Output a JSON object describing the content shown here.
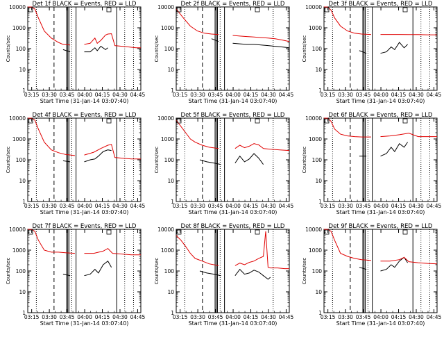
{
  "x_tick_labels": [
    "03:15",
    "03:30",
    "03:45",
    "04:00",
    "04:15",
    "04:30",
    "04:45"
  ],
  "y_tick_labels": [
    "1",
    "10",
    "100",
    "1000",
    "10000"
  ],
  "ylabel": "Counts/sec",
  "xlabel": "Start Time (31-Jan-14 03:07:40)",
  "colors": {
    "events": "#000000",
    "lld": "#e00000"
  },
  "chart_data": [
    {
      "type": "line",
      "title": "Det 1f BLACK = Events, RED = LLD",
      "xlabel": "Start Time (31-Jan-14 03:07:40)",
      "ylabel": "Counts/sec",
      "y_scale": "log",
      "x_unit": "minutes since 03:07:40",
      "xlim": [
        4,
        100
      ],
      "ylim": [
        1,
        10000
      ],
      "series": [
        {
          "name": "BLACK = Events",
          "color": "#000000",
          "x": [
            34,
            40,
            46,
            52,
            57,
            61,
            63,
            66,
            70,
            72
          ],
          "y": [
            90,
            70,
            80,
            70,
            70,
            110,
            80,
            130,
            90,
            110
          ]
        },
        {
          "name": "RED = LLD",
          "color": "#e00000",
          "x": [
            4,
            7,
            10,
            13,
            18,
            24,
            30,
            34,
            40,
            46,
            52,
            57,
            61,
            63,
            66,
            70,
            72,
            75,
            78,
            84,
            90,
            96,
            100
          ],
          "y": [
            10000,
            10000,
            8000,
            3000,
            700,
            320,
            200,
            160,
            150,
            140,
            160,
            180,
            320,
            180,
            250,
            450,
            500,
            520,
            140,
            130,
            120,
            110,
            110
          ]
        }
      ],
      "vlines_dotted_min": [
        11.3,
        41.3,
        86.3,
        93.8
      ],
      "vlines_dashed_min": [
        26.3
      ],
      "vlines_solid_min": [
        37.0,
        38.0,
        39.0,
        45.0,
        79.5
      ],
      "gap_min": [
        45,
        50
      ]
    },
    {
      "type": "line",
      "title": "Det 2f BLACK = Events, RED = LLD",
      "xlabel": "Start Time (31-Jan-14 03:07:40)",
      "ylabel": "Counts/sec",
      "y_scale": "log",
      "x_unit": "minutes since 03:07:40",
      "xlim": [
        4,
        100
      ],
      "ylim": [
        1,
        10000
      ],
      "series": [
        {
          "name": "BLACK = Events",
          "color": "#000000",
          "x": [
            34,
            40,
            46,
            52,
            58,
            64,
            70,
            76,
            82,
            88,
            94,
            100
          ],
          "y": [
            300,
            220,
            190,
            180,
            170,
            160,
            160,
            150,
            140,
            130,
            120,
            110
          ]
        },
        {
          "name": "RED = LLD",
          "color": "#e00000",
          "x": [
            4,
            10,
            16,
            22,
            28,
            34,
            40,
            46,
            52,
            58,
            64,
            70,
            76,
            82,
            88,
            94,
            100
          ],
          "y": [
            8000,
            3000,
            1200,
            700,
            550,
            500,
            470,
            450,
            430,
            400,
            380,
            360,
            340,
            320,
            300,
            260,
            220
          ]
        }
      ],
      "vlines_dotted_min": [
        11.3,
        41.3,
        86.3
      ],
      "vlines_dashed_min": [
        26.3
      ],
      "vlines_solid_min": [
        37.0,
        38.0,
        39.0,
        45.0
      ],
      "gap_min": [
        45,
        50
      ]
    },
    {
      "type": "line",
      "title": "Det 3f BLACK = Events, RED = LLD",
      "xlabel": "Start Time (31-Jan-14 03:07:40)",
      "ylabel": "Counts/sec",
      "y_scale": "log",
      "x_unit": "minutes since 03:07:40",
      "xlim": [
        4,
        100
      ],
      "ylim": [
        1,
        10000
      ],
      "series": [
        {
          "name": "BLACK = Events",
          "color": "#000000",
          "x": [
            34,
            40,
            46,
            52,
            57,
            61,
            64,
            68,
            72,
            75
          ],
          "y": [
            80,
            60,
            60,
            60,
            70,
            120,
            90,
            200,
            110,
            160
          ]
        },
        {
          "name": "RED = LLD",
          "color": "#e00000",
          "x": [
            4,
            7,
            10,
            13,
            18,
            24,
            30,
            36,
            44,
            52,
            60,
            68,
            76,
            84,
            92,
            100
          ],
          "y": [
            10000,
            10000,
            7000,
            3000,
            1200,
            700,
            550,
            500,
            480,
            480,
            480,
            480,
            470,
            470,
            460,
            460
          ]
        }
      ],
      "vlines_dotted_min": [
        11.3,
        41.3,
        86.3,
        93.8
      ],
      "vlines_dashed_min": [
        26.3
      ],
      "vlines_solid_min": [
        37.0,
        38.0,
        39.0,
        45.0,
        79.5
      ],
      "gap_min": [
        45,
        50
      ]
    },
    {
      "type": "line",
      "title": "Det 4f BLACK = Events, RED = LLD",
      "xlabel": "Start Time (31-Jan-14 03:07:40)",
      "ylabel": "Counts/sec",
      "y_scale": "log",
      "x_unit": "minutes since 03:07:40",
      "xlim": [
        4,
        100
      ],
      "ylim": [
        1,
        10000
      ],
      "series": [
        {
          "name": "BLACK = Events",
          "color": "#000000",
          "x": [
            34,
            40,
            46,
            52,
            57,
            61,
            64,
            68,
            72,
            75
          ],
          "y": [
            90,
            80,
            70,
            80,
            100,
            110,
            150,
            250,
            300,
            280
          ]
        },
        {
          "name": "RED = LLD",
          "color": "#e00000",
          "x": [
            4,
            7,
            10,
            13,
            18,
            24,
            30,
            36,
            44,
            52,
            60,
            66,
            72,
            75,
            78,
            84,
            92,
            100
          ],
          "y": [
            10000,
            10000,
            8000,
            3000,
            700,
            300,
            220,
            180,
            160,
            170,
            230,
            350,
            500,
            550,
            130,
            120,
            110,
            110
          ]
        }
      ],
      "vlines_dotted_min": [
        11.3,
        41.3,
        86.3,
        93.8
      ],
      "vlines_dashed_min": [
        26.3
      ],
      "vlines_solid_min": [
        37.0,
        38.0,
        39.0,
        45.0,
        79.5
      ],
      "gap_min": [
        45,
        50
      ]
    },
    {
      "type": "line",
      "title": "Det 5f BLACK = Events, RED = LLD",
      "xlabel": "Start Time (31-Jan-14 03:07:40)",
      "ylabel": "Counts/sec",
      "y_scale": "log",
      "x_unit": "minutes since 03:07:40",
      "xlim": [
        4,
        100
      ],
      "ylim": [
        1,
        10000
      ],
      "series": [
        {
          "name": "BLACK = Events",
          "color": "#000000",
          "x": [
            24,
            30,
            36,
            42,
            48,
            54,
            58,
            62,
            66,
            70,
            74,
            78
          ],
          "y": [
            100,
            80,
            70,
            60,
            60,
            70,
            150,
            80,
            110,
            200,
            120,
            60
          ]
        },
        {
          "name": "RED = LLD",
          "color": "#e00000",
          "x": [
            4,
            8,
            12,
            16,
            20,
            26,
            32,
            40,
            48,
            54,
            58,
            62,
            66,
            70,
            74,
            78,
            84,
            92,
            100
          ],
          "y": [
            8000,
            4000,
            2000,
            1000,
            700,
            500,
            400,
            350,
            320,
            350,
            500,
            380,
            450,
            600,
            520,
            350,
            320,
            300,
            280
          ]
        }
      ],
      "vlines_dotted_min": [
        11.3,
        41.3,
        86.3
      ],
      "vlines_dashed_min": [
        26.3
      ],
      "vlines_solid_min": [
        37.0,
        38.0,
        39.0,
        45.0
      ],
      "gap_min": [
        45,
        50
      ]
    },
    {
      "type": "line",
      "title": "Det 6f BLACK = Events, RED = LLD",
      "xlabel": "Start Time (31-Jan-14 03:07:40)",
      "ylabel": "Counts/sec",
      "y_scale": "log",
      "x_unit": "minutes since 03:07:40",
      "xlim": [
        4,
        100
      ],
      "ylim": [
        1,
        10000
      ],
      "series": [
        {
          "name": "BLACK = Events",
          "color": "#000000",
          "x": [
            34,
            40,
            46,
            52,
            57,
            61,
            64,
            68,
            72,
            75
          ],
          "y": [
            150,
            150,
            140,
            150,
            200,
            400,
            250,
            600,
            400,
            700
          ]
        },
        {
          "name": "RED = LLD",
          "color": "#e00000",
          "x": [
            4,
            7,
            10,
            13,
            18,
            24,
            30,
            36,
            44,
            52,
            60,
            68,
            76,
            84,
            92,
            100
          ],
          "y": [
            10000,
            10000,
            7000,
            3000,
            1700,
            1400,
            1300,
            1250,
            1250,
            1300,
            1400,
            1600,
            1900,
            1300,
            1300,
            1300
          ]
        }
      ],
      "vlines_dotted_min": [
        11.3,
        41.3,
        86.3,
        93.8
      ],
      "vlines_dashed_min": [
        26.3
      ],
      "vlines_solid_min": [
        37.0,
        38.0,
        39.0,
        45.0,
        79.5
      ],
      "gap_min": [
        45,
        50
      ]
    },
    {
      "type": "line",
      "title": "Det 7f BLACK = Events, RED = LLD",
      "xlabel": "Start Time (31-Jan-14 03:07:40)",
      "ylabel": "Counts/sec",
      "y_scale": "log",
      "x_unit": "minutes since 03:07:40",
      "xlim": [
        4,
        100
      ],
      "ylim": [
        1,
        10000
      ],
      "series": [
        {
          "name": "BLACK = Events",
          "color": "#000000",
          "x": [
            34,
            40,
            46,
            52,
            57,
            61,
            64,
            68,
            72,
            75
          ],
          "y": [
            70,
            60,
            60,
            60,
            70,
            120,
            80,
            200,
            300,
            150
          ]
        },
        {
          "name": "RED = LLD",
          "color": "#e00000",
          "x": [
            4,
            7,
            10,
            13,
            18,
            24,
            30,
            36,
            44,
            52,
            60,
            68,
            72,
            76,
            84,
            92,
            100
          ],
          "y": [
            10000,
            10000,
            8000,
            3000,
            1000,
            800,
            800,
            750,
            700,
            700,
            700,
            900,
            1200,
            700,
            650,
            600,
            600
          ]
        }
      ],
      "vlines_dotted_min": [
        11.3,
        41.3,
        86.3,
        93.8
      ],
      "vlines_dashed_min": [
        26.3
      ],
      "vlines_solid_min": [
        37.0,
        38.0,
        39.0,
        45.0,
        79.5
      ],
      "gap_min": [
        45,
        50
      ]
    },
    {
      "type": "line",
      "title": "Det 8f BLACK = Events, RED = LLD",
      "xlabel": "Start Time (31-Jan-14 03:07:40)",
      "ylabel": "Counts/sec",
      "y_scale": "log",
      "x_unit": "minutes since 03:07:40",
      "xlim": [
        4,
        100
      ],
      "ylim": [
        1,
        10000
      ],
      "series": [
        {
          "name": "BLACK = Events",
          "color": "#000000",
          "x": [
            24,
            30,
            36,
            42,
            48,
            54,
            58,
            62,
            66,
            70,
            74,
            78,
            82,
            84
          ],
          "y": [
            100,
            80,
            70,
            60,
            55,
            60,
            120,
            70,
            80,
            110,
            90,
            60,
            40,
            50
          ]
        },
        {
          "name": "RED = LLD",
          "color": "#e00000",
          "x": [
            4,
            8,
            12,
            16,
            20,
            26,
            32,
            40,
            48,
            54,
            58,
            62,
            66,
            70,
            74,
            78,
            80,
            82,
            84,
            90,
            96,
            100
          ],
          "y": [
            5000,
            3000,
            1500,
            700,
            400,
            300,
            220,
            180,
            170,
            180,
            240,
            200,
            260,
            300,
            400,
            500,
            8000,
            150,
            140,
            140,
            130,
            130
          ]
        }
      ],
      "vlines_dotted_min": [
        11.3,
        41.3,
        86.3
      ],
      "vlines_dashed_min": [
        26.3
      ],
      "vlines_solid_min": [
        37.0,
        38.0,
        39.0,
        45.0
      ],
      "gap_min": [
        45,
        50
      ]
    },
    {
      "type": "line",
      "title": "Det 9f BLACK = Events, RED = LLD",
      "xlabel": "Start Time (31-Jan-14 03:07:40)",
      "ylabel": "Counts/sec",
      "y_scale": "log",
      "x_unit": "minutes since 03:07:40",
      "xlim": [
        4,
        100
      ],
      "ylim": [
        1,
        10000
      ],
      "series": [
        {
          "name": "BLACK = Events",
          "color": "#000000",
          "x": [
            34,
            40,
            46,
            52,
            57,
            61,
            64,
            68,
            72,
            75
          ],
          "y": [
            150,
            120,
            100,
            100,
            120,
            200,
            150,
            300,
            450,
            250
          ]
        },
        {
          "name": "RED = LLD",
          "color": "#e00000",
          "x": [
            4,
            7,
            10,
            13,
            18,
            24,
            30,
            36,
            44,
            52,
            60,
            68,
            72,
            76,
            84,
            92,
            100
          ],
          "y": [
            10000,
            10000,
            8000,
            3000,
            700,
            500,
            400,
            350,
            320,
            300,
            300,
            350,
            450,
            280,
            250,
            230,
            220
          ]
        }
      ],
      "vlines_dotted_min": [
        11.3,
        41.3,
        86.3,
        93.8
      ],
      "vlines_dashed_min": [
        26.3
      ],
      "vlines_solid_min": [
        37.0,
        38.0,
        39.0,
        45.0,
        79.5
      ],
      "gap_min": [
        45,
        50
      ]
    }
  ]
}
